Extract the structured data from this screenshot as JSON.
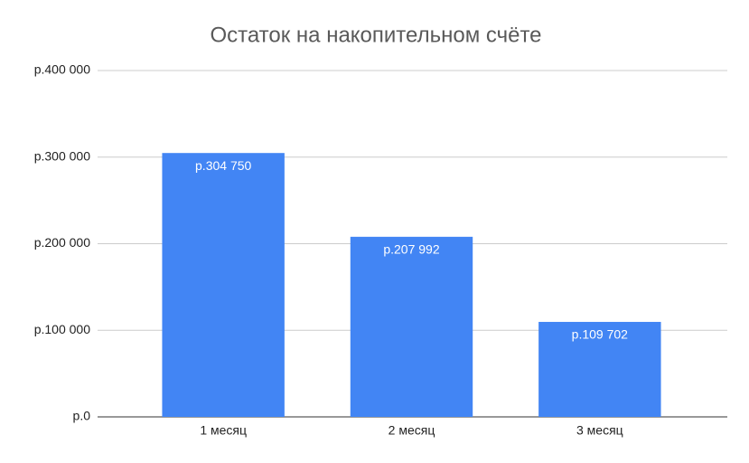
{
  "chart_data": {
    "type": "bar",
    "title": "Остаток на накопительном счёте",
    "categories": [
      "1 месяц",
      "2 месяц",
      "3 месяц"
    ],
    "values": [
      304750,
      207992,
      109702
    ],
    "value_labels": [
      "р.304 750",
      "р.207 992",
      "р.109 702"
    ],
    "color": "#4285f4",
    "ylim": [
      0,
      400000
    ],
    "yticks": [
      {
        "value": 0,
        "label": "р.0"
      },
      {
        "value": 100000,
        "label": "р.100 000"
      },
      {
        "value": 200000,
        "label": "р.200 000"
      },
      {
        "value": 300000,
        "label": "р.300 000"
      },
      {
        "value": 400000,
        "label": "р.400 000"
      }
    ],
    "grid": true
  }
}
